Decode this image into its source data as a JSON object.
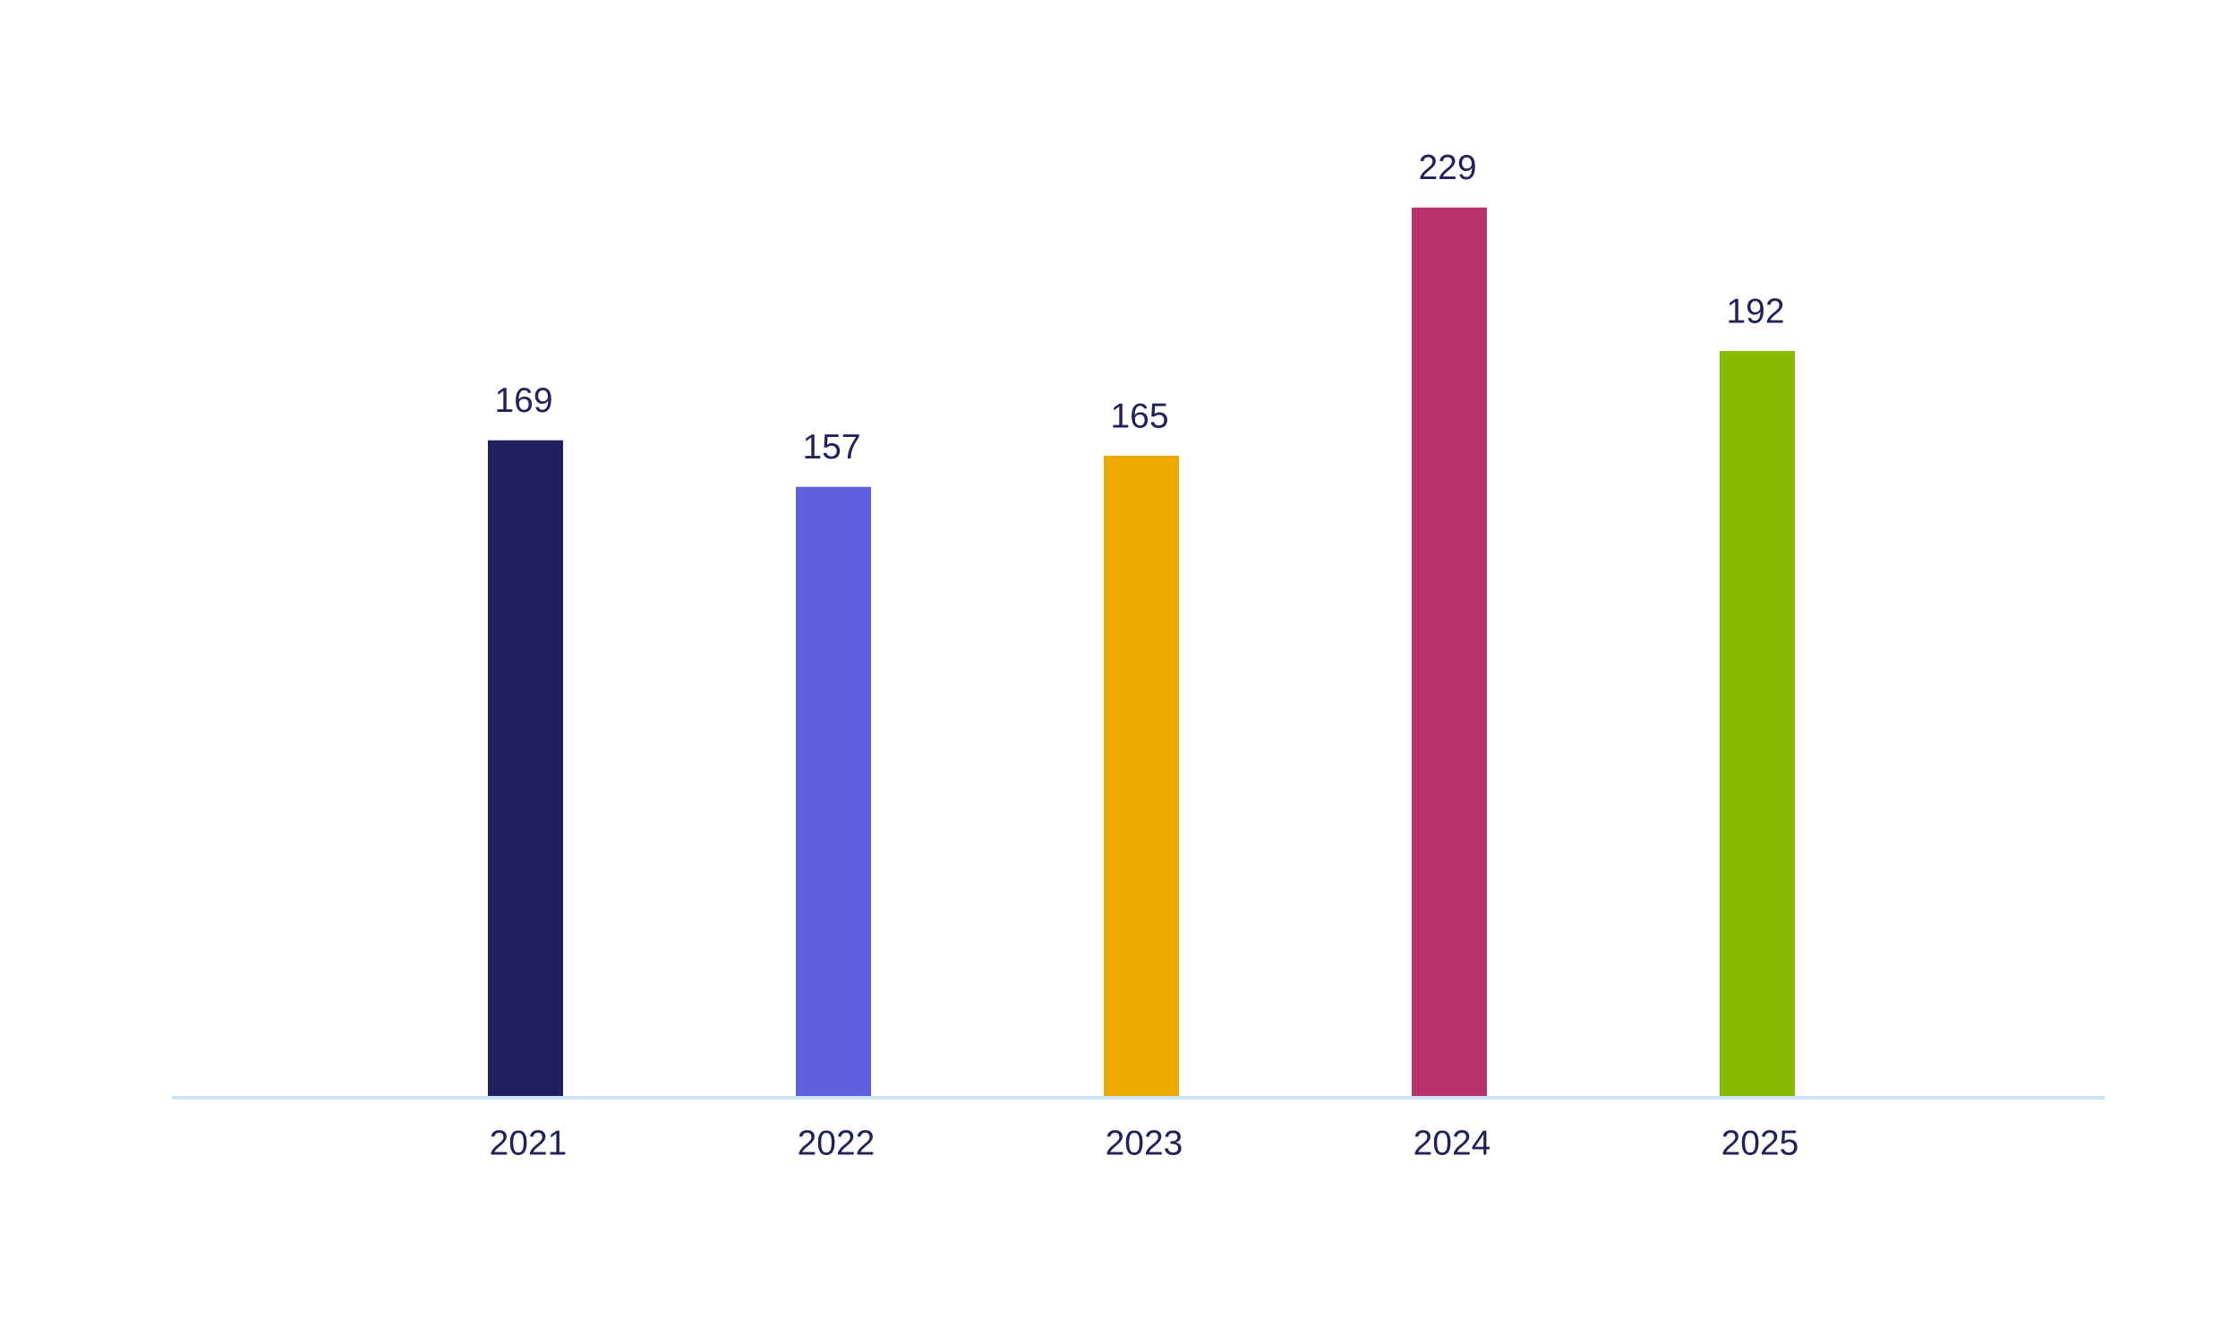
{
  "chart_data": {
    "type": "bar",
    "categories": [
      "2021",
      "2022",
      "2023",
      "2024",
      "2025"
    ],
    "values": [
      169,
      157,
      165,
      229,
      192
    ],
    "colors": [
      "#211f5e",
      "#5f5fe0",
      "#eda900",
      "#b8336a",
      "#86bb00"
    ]
  }
}
